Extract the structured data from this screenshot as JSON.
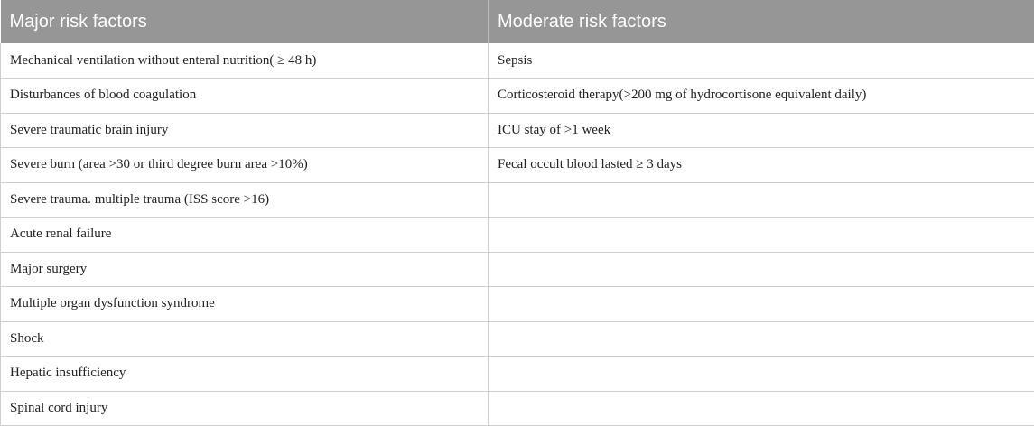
{
  "table": {
    "headers": [
      "Major risk factors",
      "Moderate risk factors"
    ],
    "rows": [
      [
        "Mechanical ventilation without enteral nutrition( ≥  48 h)",
        "Sepsis"
      ],
      [
        "Disturbances of blood coagulation",
        "Corticosteroid therapy(>200 mg of hydrocortisone equivalent daily)"
      ],
      [
        "Severe traumatic brain injury",
        "ICU stay of >1 week"
      ],
      [
        "Severe burn (area >30 or third degree burn area >10%)",
        "Fecal occult blood lasted  ≥  3 days"
      ],
      [
        "Severe trauma. multiple trauma (ISS score >16)",
        ""
      ],
      [
        "Acute renal failure",
        ""
      ],
      [
        "Major surgery",
        ""
      ],
      [
        "Multiple organ dysfunction syndrome",
        ""
      ],
      [
        "Shock",
        ""
      ],
      [
        "Hepatic insufficiency",
        ""
      ],
      [
        "Spinal cord injury",
        ""
      ]
    ]
  }
}
